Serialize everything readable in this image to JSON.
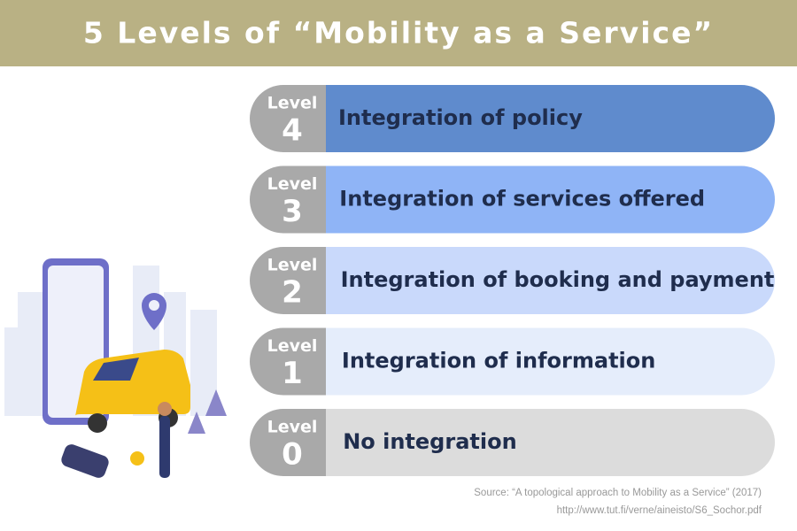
{
  "header": {
    "title": "5 Levels of “Mobility as a Service”"
  },
  "levels": [
    {
      "label": "Level",
      "number": "4",
      "text": "Integration of policy",
      "color": "#5f8bcd"
    },
    {
      "label": "Level",
      "number": "3",
      "text": "Integration of services offered",
      "color": "#8fb4f6"
    },
    {
      "label": "Level",
      "number": "2",
      "text": "Integration of booking and payment",
      "color": "#c9d9fb"
    },
    {
      "label": "Level",
      "number": "1",
      "text": "Integration of information",
      "color": "#e5edfb"
    },
    {
      "label": "Level",
      "number": "0",
      "text": "No integration",
      "color": "#dcdcdc"
    }
  ],
  "source": {
    "line1": "Source: “A topological approach to Mobility as a Service”  (2017)",
    "line2": "http://www.tut.fi/verne/aineisto/S6_Sochor.pdf"
  }
}
